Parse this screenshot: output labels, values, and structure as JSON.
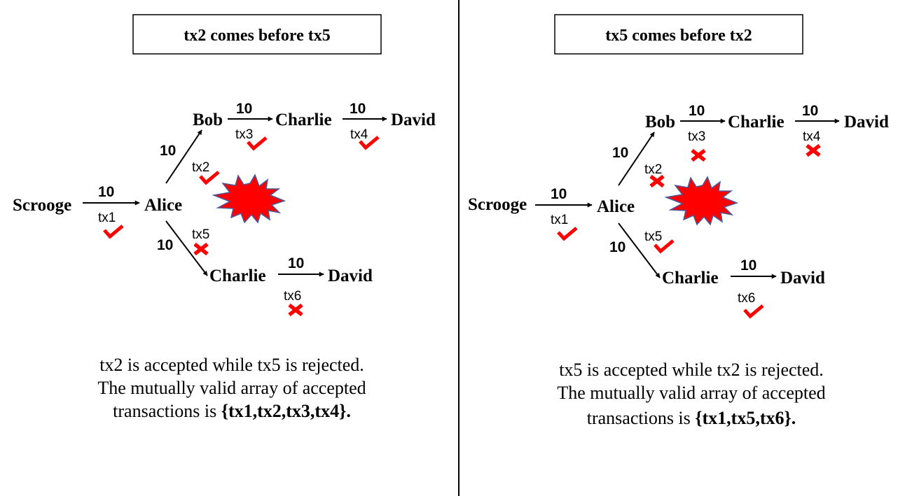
{
  "left": {
    "title": "tx2 comes before tx5",
    "nodes": {
      "scrooge": "Scrooge",
      "alice": "Alice",
      "bob": "Bob",
      "charlie_top": "Charlie",
      "david_top": "David",
      "charlie_bottom": "Charlie",
      "david_bottom": "David"
    },
    "edges": {
      "tx1": {
        "amount": "10",
        "label": "tx1",
        "status": "accepted"
      },
      "tx2": {
        "amount": "10",
        "label": "tx2",
        "status": "accepted"
      },
      "tx3": {
        "amount": "10",
        "label": "tx3",
        "status": "accepted"
      },
      "tx4": {
        "amount": "10",
        "label": "tx4",
        "status": "accepted"
      },
      "tx5": {
        "amount": "10",
        "label": "tx5",
        "status": "rejected"
      },
      "tx6": {
        "amount": "10",
        "label": "tx6",
        "status": "rejected"
      }
    },
    "caption": {
      "line1": "tx2 is accepted while tx5 is rejected.",
      "line2": "The mutually valid array of accepted",
      "line3_prefix": "transactions is ",
      "line3_set": "{tx1,tx2,tx3,tx4}",
      "line3_suffix": "."
    }
  },
  "right": {
    "title": "tx5 comes before tx2",
    "nodes": {
      "scrooge": "Scrooge",
      "alice": "Alice",
      "bob": "Bob",
      "charlie_top": "Charlie",
      "david_top": "David",
      "charlie_bottom": "Charlie",
      "david_bottom": "David"
    },
    "edges": {
      "tx1": {
        "amount": "10",
        "label": "tx1",
        "status": "accepted"
      },
      "tx2": {
        "amount": "10",
        "label": "tx2",
        "status": "rejected"
      },
      "tx3": {
        "amount": "10",
        "label": "tx3",
        "status": "rejected"
      },
      "tx4": {
        "amount": "10",
        "label": "tx4",
        "status": "rejected"
      },
      "tx5": {
        "amount": "10",
        "label": "tx5",
        "status": "accepted"
      },
      "tx6": {
        "amount": "10",
        "label": "tx6",
        "status": "accepted"
      }
    },
    "caption": {
      "line1": "tx5 is accepted while tx2 is rejected.",
      "line2": "The mutually valid array of accepted",
      "line3_prefix": "transactions is ",
      "line3_set": "{tx1,tx5,tx6}",
      "line3_suffix": "."
    }
  },
  "colors": {
    "mark": "#ff0000",
    "burst": "#ff0000",
    "burst_outline": "#4a5a9a",
    "line": "#000000"
  }
}
